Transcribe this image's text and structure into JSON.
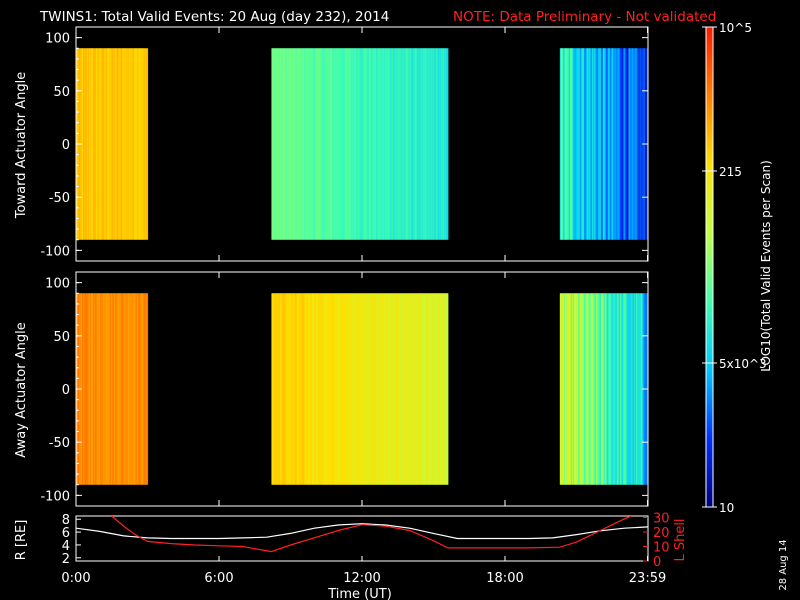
{
  "header": {
    "title": "TWINS1: Total Valid Events: 20 Aug (day 232), 2014",
    "note": "NOTE: Data Preliminary - Not validated",
    "side_date": "28 Aug 14"
  },
  "colorbar": {
    "label": "LOG10(Total Valid Events per Scan)",
    "tick_labels": [
      "10",
      "215",
      "5x10^3",
      "10^5"
    ],
    "colors": [
      "#00007a",
      "#0030ff",
      "#00c8ff",
      "#40ffb0",
      "#c0ff40",
      "#ffe000",
      "#ff8000",
      "#ff1a00"
    ]
  },
  "chart_data": [
    {
      "type": "heatmap",
      "panel": "toward",
      "ylabel": "Toward Actuator Angle",
      "xlim": [
        0,
        24
      ],
      "ylim": [
        -110,
        110
      ],
      "y_extent": [
        -90,
        90
      ],
      "y_ticks": [
        "100",
        "50",
        "0",
        "-50",
        "-100"
      ],
      "segments": [
        {
          "t_start": 0.0,
          "t_end": 3.0,
          "level": 0.75
        },
        {
          "t_start": 8.2,
          "t_end": 15.6,
          "level": 0.42
        },
        {
          "t_start": 20.3,
          "t_end": 23.98,
          "level": 0.28
        }
      ]
    },
    {
      "type": "heatmap",
      "panel": "away",
      "ylabel": "Away Actuator Angle",
      "xlim": [
        0,
        24
      ],
      "ylim": [
        -110,
        110
      ],
      "y_extent": [
        -90,
        90
      ],
      "y_ticks": [
        "100",
        "50",
        "0",
        "-50",
        "-100"
      ],
      "segments": [
        {
          "t_start": 0.0,
          "t_end": 3.0,
          "level": 0.84
        },
        {
          "t_start": 8.2,
          "t_end": 15.6,
          "level": 0.68
        },
        {
          "t_start": 20.3,
          "t_end": 23.98,
          "level": 0.45
        }
      ]
    },
    {
      "type": "line",
      "panel": "orbit",
      "ylabel_left": "R [RE]",
      "ylabel_right": "L Shell",
      "xlabel": "Time (UT)",
      "x_tick_labels": [
        "0:00",
        "6:00",
        "12:00",
        "18:00",
        "23:59"
      ],
      "x_ticks": [
        0,
        6,
        12,
        18,
        23.98
      ],
      "y_left_ticks": [
        "8",
        "6",
        "4",
        "2"
      ],
      "y_right_ticks": [
        "30",
        "20",
        "10",
        "0"
      ],
      "ylim_left": [
        1.5,
        8.5
      ],
      "ylim_right": [
        0,
        31
      ],
      "series": [
        {
          "axis": "left",
          "color": "#ffffff",
          "x": [
            0,
            1,
            2,
            3,
            4,
            5,
            6,
            7,
            8,
            9,
            10,
            11,
            12,
            13,
            14,
            15,
            16,
            17,
            18,
            19,
            20,
            21,
            22,
            23,
            24
          ],
          "y": [
            6.6,
            6.1,
            5.4,
            5.1,
            5.0,
            5.0,
            5.0,
            5.1,
            5.2,
            5.8,
            6.6,
            7.1,
            7.3,
            7.1,
            6.6,
            5.8,
            5.0,
            5.0,
            5.0,
            5.0,
            5.1,
            5.6,
            6.2,
            6.6,
            6.8
          ]
        },
        {
          "axis": "right",
          "color": "#ff2020",
          "x": [
            1.5,
            2,
            2.5,
            3,
            4,
            5,
            6,
            7,
            8.2,
            9,
            10,
            11,
            12,
            13,
            14,
            15,
            15.6,
            17,
            18,
            19,
            20.3,
            21,
            21.5,
            22,
            22.5,
            23,
            23.3
          ],
          "y": [
            31,
            24,
            18,
            13.5,
            12,
            11,
            10.5,
            10,
            6.5,
            11,
            16,
            21,
            25,
            24,
            21,
            14,
            9,
            9,
            9,
            9,
            9.5,
            13,
            17,
            21,
            25,
            29,
            31
          ]
        }
      ]
    }
  ]
}
